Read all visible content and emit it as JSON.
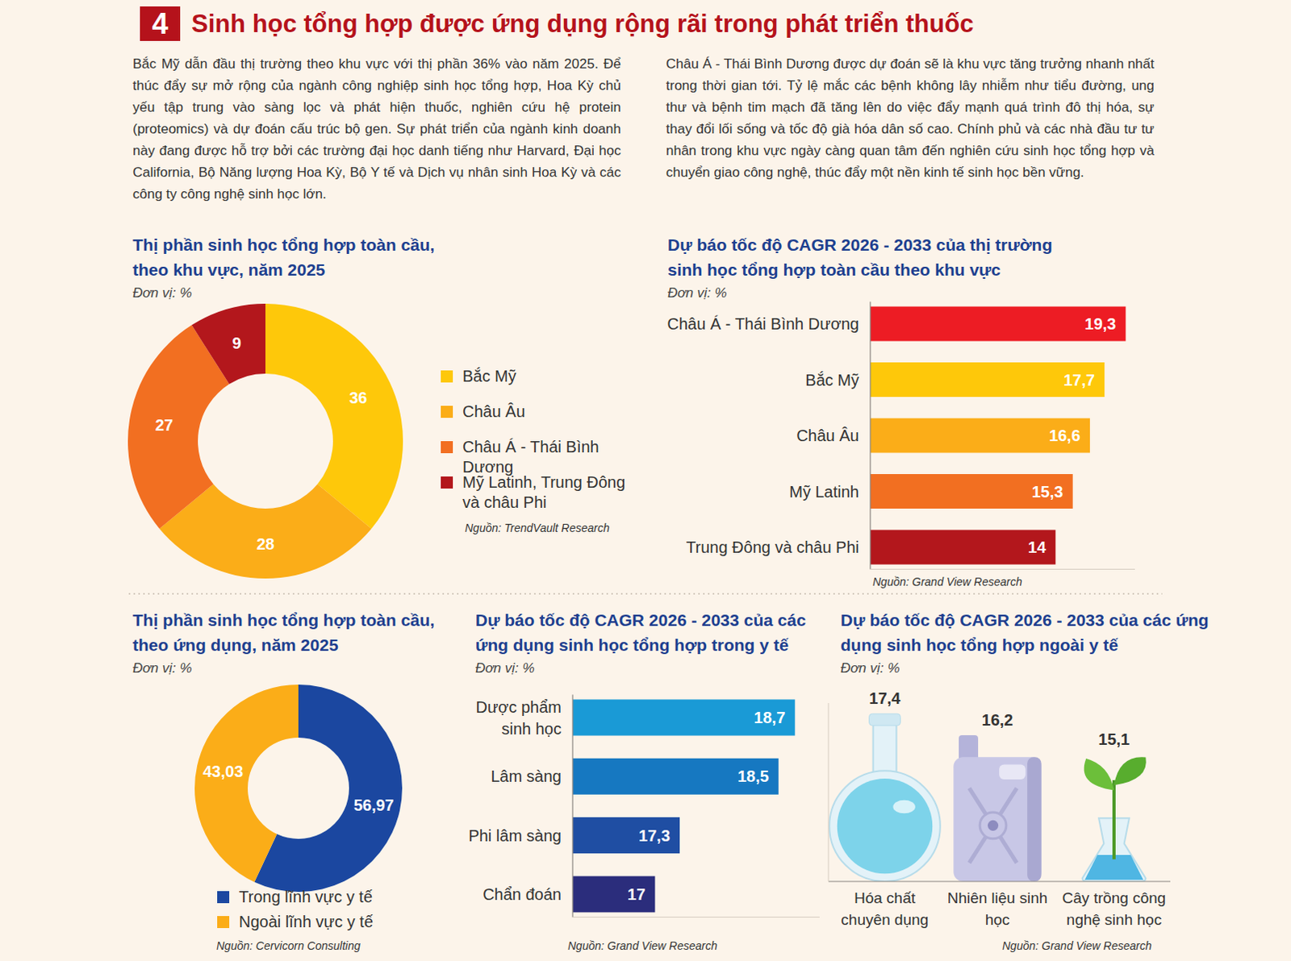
{
  "header": {
    "number": "4",
    "title": "Sinh học tổng hợp được ứng dụng rộng rãi trong phát triển thuốc"
  },
  "paragraphs": [
    "Bắc Mỹ dẫn đầu thị trường theo khu vực với thị phần 36% vào năm 2025. Để thúc đẩy sự mở rộng của ngành công nghiệp sinh học tổng hợp, Hoa Kỳ chủ yếu tập trung vào sàng lọc và phát hiện thuốc, nghiên cứu hệ protein (proteomics) và dự đoán cấu trúc bộ gen. Sự phát triển của ngành kinh doanh này đang được hỗ trợ bởi các trường đại học danh tiếng như Harvard, Đại học California, Bộ Năng lượng Hoa Kỳ, Bộ Y tế và Dịch vụ nhân sinh Hoa Kỳ và các công ty công nghệ sinh học lớn.",
    "Châu Á - Thái Bình Dương được dự đoán sẽ là khu vực tăng trưởng nhanh nhất trong thời gian tới. Tỷ lệ mắc các bệnh không lây nhiễm như tiểu đường, ung thư và bệnh tim mạch đã tăng lên do việc đẩy mạnh quá trình đô thị hóa, sự thay đổi lối sống và tốc độ già hóa dân số cao. Chính phủ và các nhà đầu tư tư nhân trong khu vực ngày càng quan tâm đến nghiên cứu sinh học tổng hợp và chuyển giao công nghệ, thúc đẩy một nền kinh tế sinh học bền vững."
  ],
  "chart_data": [
    {
      "type": "pie",
      "title": "Thị phần sinh học tổng hợp toàn cầu, theo khu vực, năm 2025",
      "subtitle": "Đơn vị: %",
      "categories": [
        "Bắc Mỹ",
        "Châu Âu",
        "Châu Á - Thái Bình Dương",
        "Mỹ Latinh, Trung Đông và châu Phi"
      ],
      "values": [
        36,
        28,
        27,
        9
      ],
      "colors": [
        "#fec80a",
        "#fbad18",
        "#f26f21",
        "#b3171c"
      ],
      "data_labels": true,
      "legend": "right",
      "source": "Nguồn: TrendVault Research"
    },
    {
      "type": "bar",
      "orientation": "horizontal",
      "title": "Dự báo tốc độ CAGR 2026 - 2033 của thị trường sinh học tổng hợp toàn cầu theo khu vực",
      "subtitle": "Đơn vị: %",
      "categories": [
        "Châu Á - Thái Bình Dương",
        "Bắc Mỹ",
        "Châu Âu",
        "Mỹ Latinh",
        "Trung Đông và châu Phi"
      ],
      "values": [
        19.3,
        17.7,
        16.6,
        15.3,
        14
      ],
      "value_labels": [
        "19,3",
        "17,7",
        "16,6",
        "15,3",
        "14"
      ],
      "colors": [
        "#ed1c24",
        "#fec80a",
        "#fbad18",
        "#f26f21",
        "#b3171c"
      ],
      "xlim": [
        0,
        20
      ],
      "data_labels": true,
      "tick_labels": "y",
      "source": "Nguồn: Grand View Research"
    },
    {
      "type": "pie",
      "title": "Thị phần sinh học tổng hợp toàn cầu, theo ứng dụng, năm 2025",
      "subtitle": "Đơn vị: %",
      "categories": [
        "Trong lĩnh vực y tế",
        "Ngoài lĩnh vực y tế"
      ],
      "values": [
        56.97,
        43.03
      ],
      "value_labels": [
        "56,97",
        "43,03"
      ],
      "colors": [
        "#1b47a0",
        "#fbad18"
      ],
      "data_labels": true,
      "legend": "bottom",
      "source": "Nguồn: Cervicorn Consulting"
    },
    {
      "type": "bar",
      "orientation": "horizontal",
      "title": "Dự báo tốc độ CAGR 2026 - 2033 của các ứng dụng sinh học tổng hợp trong y tế",
      "subtitle": "Đơn vị: %",
      "categories": [
        "Dược phẩm sinh học",
        "Lâm sàng",
        "Phi lâm sàng",
        "Chẩn đoán"
      ],
      "values": [
        18.7,
        18.5,
        17.3,
        17
      ],
      "value_labels": [
        "18,7",
        "18,5",
        "17,3",
        "17"
      ],
      "colors": [
        "#1a9ad6",
        "#1678c1",
        "#1f4ea3",
        "#2b2d7c"
      ],
      "xlim": [
        16,
        19
      ],
      "data_labels": true,
      "tick_labels": "y",
      "source": "Nguồn: Grand View Research"
    },
    {
      "type": "bar",
      "marker": "icon",
      "title": "Dự báo tốc độ CAGR 2026 - 2033 của các ứng dụng sinh học tổng hợp ngoài y tế",
      "subtitle": "Đơn vị: %",
      "categories": [
        "Hóa chất chuyên dụng",
        "Nhiên liệu sinh học",
        "Cây trồng công nghệ sinh học"
      ],
      "values": [
        17.4,
        16.2,
        15.1
      ],
      "value_labels": [
        "17,4",
        "16,2",
        "15,1"
      ],
      "colors": [
        "#7dd3ea",
        "#c8c7e6",
        "#4fb6e3"
      ],
      "ylim": [
        8,
        18
      ],
      "data_labels": true,
      "tick_labels": "x",
      "source": "Nguồn: Grand View Research"
    }
  ]
}
